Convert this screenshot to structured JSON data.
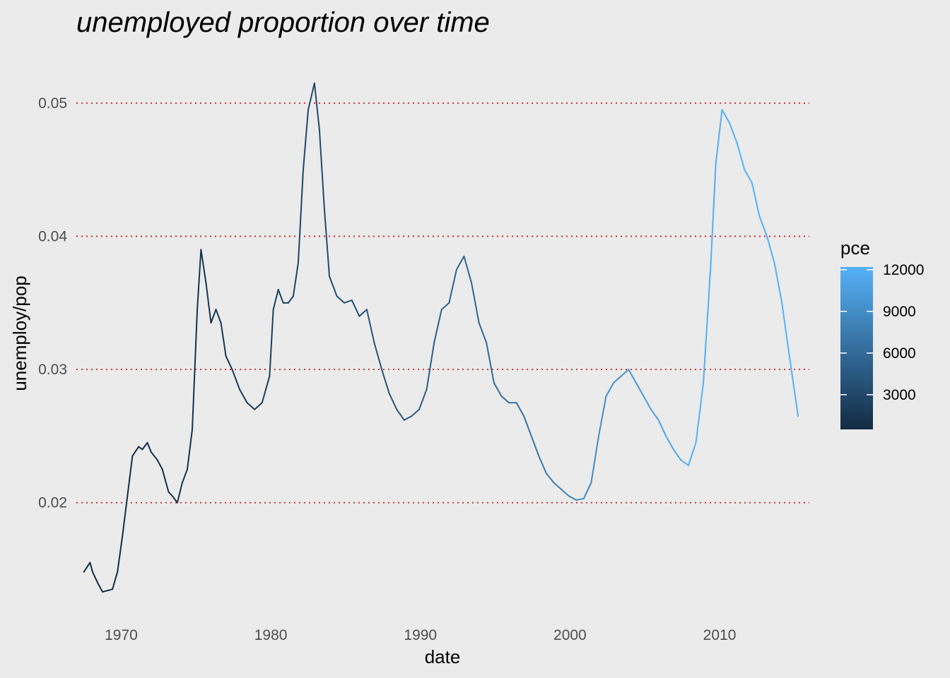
{
  "chart_data": {
    "type": "line",
    "title": "unemployed proportion over time",
    "xlabel": "date",
    "ylabel": "unemploy/pop",
    "xlim": [
      "1967-01",
      "2016-01"
    ],
    "ylim": [
      0.0115,
      0.0535
    ],
    "x_ticks": [
      "1970",
      "1980",
      "1990",
      "2000",
      "2010"
    ],
    "y_ticks": [
      "0.02",
      "0.03",
      "0.04",
      "0.05"
    ],
    "grid": "major y gridlines dotted red",
    "legend": {
      "title": "pce",
      "placement": "right",
      "ticks": [
        "3000",
        "6000",
        "9000",
        "12000"
      ],
      "tick_values": [
        3000,
        6000,
        9000,
        12000
      ],
      "range": [
        500,
        12200
      ],
      "color_low": "#132B43",
      "color_high": "#56B1F7"
    },
    "series": [
      {
        "x": [
          "1967-07",
          "1967-12",
          "1968-02",
          "1968-06",
          "1968-10",
          "1969-02",
          "1969-06",
          "1969-10",
          "1970-02",
          "1970-06",
          "1970-10",
          "1971-03",
          "1971-06",
          "1971-10",
          "1972-01",
          "1972-06",
          "1972-10",
          "1973-03",
          "1973-06",
          "1973-10",
          "1974-02",
          "1974-06",
          "1974-10",
          "1975-02",
          "1975-05",
          "1975-09",
          "1976-01",
          "1976-05",
          "1976-09",
          "1977-01",
          "1977-06",
          "1977-12",
          "1978-06",
          "1978-12",
          "1979-06",
          "1979-12",
          "1980-03",
          "1980-07",
          "1980-11",
          "1981-03",
          "1981-07",
          "1981-11",
          "1982-03",
          "1982-07",
          "1982-12",
          "1983-04",
          "1983-08",
          "1983-12",
          "1984-06",
          "1984-12",
          "1985-06",
          "1985-12",
          "1986-06",
          "1986-12",
          "1987-06",
          "1987-12",
          "1988-06",
          "1988-12",
          "1989-06",
          "1989-12",
          "1990-06",
          "1990-12",
          "1991-06",
          "1991-12",
          "1992-06",
          "1992-12",
          "1993-06",
          "1993-12",
          "1994-06",
          "1994-12",
          "1995-06",
          "1995-12",
          "1996-06",
          "1996-12",
          "1997-06",
          "1997-12",
          "1998-06",
          "1998-12",
          "1999-06",
          "1999-12",
          "2000-06",
          "2000-12",
          "2001-06",
          "2001-12",
          "2002-06",
          "2002-12",
          "2003-06",
          "2003-12",
          "2004-06",
          "2004-12",
          "2005-06",
          "2005-12",
          "2006-06",
          "2006-12",
          "2007-06",
          "2007-12",
          "2008-06",
          "2008-12",
          "2009-06",
          "2009-10",
          "2010-03",
          "2010-09",
          "2011-03",
          "2011-09",
          "2012-03",
          "2012-09",
          "2013-03",
          "2013-09",
          "2014-03",
          "2014-09",
          "2015-04"
        ],
        "values": [
          0.0148,
          0.0155,
          0.0148,
          0.014,
          0.0133,
          0.0134,
          0.0135,
          0.0148,
          0.0175,
          0.0205,
          0.0235,
          0.0242,
          0.024,
          0.0245,
          0.0238,
          0.0232,
          0.0225,
          0.0208,
          0.0205,
          0.02,
          0.0215,
          0.0225,
          0.0255,
          0.0345,
          0.039,
          0.0365,
          0.0335,
          0.0345,
          0.0335,
          0.031,
          0.03,
          0.0285,
          0.0275,
          0.027,
          0.0275,
          0.0295,
          0.0345,
          0.036,
          0.035,
          0.035,
          0.0355,
          0.038,
          0.045,
          0.0495,
          0.0515,
          0.048,
          0.042,
          0.037,
          0.0355,
          0.035,
          0.0352,
          0.034,
          0.0345,
          0.032,
          0.03,
          0.0282,
          0.027,
          0.0262,
          0.0265,
          0.027,
          0.0285,
          0.032,
          0.0345,
          0.035,
          0.0375,
          0.0385,
          0.0365,
          0.0335,
          0.032,
          0.029,
          0.028,
          0.0275,
          0.0275,
          0.0265,
          0.025,
          0.0235,
          0.0222,
          0.0215,
          0.021,
          0.0205,
          0.0202,
          0.0203,
          0.0215,
          0.025,
          0.028,
          0.029,
          0.0295,
          0.03,
          0.029,
          0.028,
          0.027,
          0.0262,
          0.025,
          0.024,
          0.0232,
          0.0228,
          0.0245,
          0.029,
          0.038,
          0.0455,
          0.0495,
          0.0485,
          0.047,
          0.045,
          0.044,
          0.0415,
          0.04,
          0.038,
          0.035,
          0.031,
          0.0265
        ],
        "pce": [
          520,
          540,
          560,
          600,
          630,
          660,
          690,
          710,
          740,
          760,
          790,
          820,
          850,
          880,
          920,
          960,
          1010,
          1060,
          1110,
          1160,
          1210,
          1260,
          1310,
          1330,
          1370,
          1420,
          1500,
          1560,
          1630,
          1700,
          1780,
          1870,
          1990,
          2080,
          2170,
          2280,
          2370,
          2440,
          2540,
          2640,
          2730,
          2800,
          2890,
          2960,
          3080,
          3180,
          3300,
          3410,
          3530,
          3650,
          3780,
          3900,
          4010,
          4120,
          4240,
          4360,
          4490,
          4620,
          4750,
          4870,
          5010,
          5120,
          5240,
          5330,
          5460,
          5590,
          5730,
          5880,
          6030,
          6160,
          6320,
          6480,
          6650,
          6800,
          7010,
          7240,
          7480,
          7720,
          8000,
          8300,
          8550,
          8760,
          8950,
          9100,
          9270,
          9440,
          9650,
          9900,
          10140,
          10400,
          10680,
          10960,
          11230,
          11500,
          11780,
          12000,
          12120,
          11850,
          11820,
          11900,
          12080,
          12230,
          12400,
          12550,
          12700,
          12850,
          12980,
          13150,
          13330,
          13520,
          13700
        ]
      }
    ]
  }
}
